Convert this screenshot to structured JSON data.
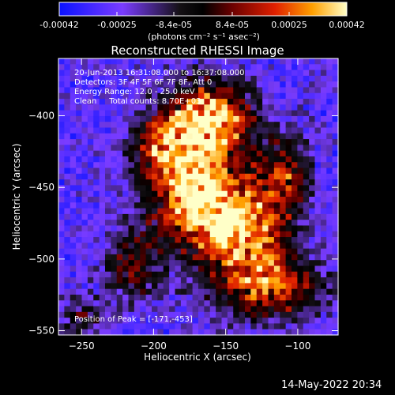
{
  "colorbar": {
    "tick_labels": [
      "-0.00042",
      "-0.00025",
      "-8.4e-05",
      "8.4e-05",
      "0.00025",
      "0.00042"
    ],
    "unit_label": "(photons cm⁻² s⁻¹ asec⁻²)",
    "range": [
      -0.00042,
      0.00042
    ]
  },
  "chart_data": {
    "type": "heatmap",
    "title": "Reconstructed RHESSI Image",
    "xlabel": "Heliocentric X (arcsec)",
    "ylabel": "Heliocentric Y (arcsec)",
    "xlim": [
      -266,
      -72
    ],
    "ylim": [
      -553,
      -360
    ],
    "x_ticks": [
      -250,
      -200,
      -150,
      -100
    ],
    "y_ticks": [
      -400,
      -450,
      -500,
      -550
    ],
    "peak_position": [
      -171,
      -453
    ],
    "annotations": [
      "20-Jun-2013 16:31:08.000 to 16:37:08.000",
      "Detectors: 3F 4F 5F 6F 7F 8F, Att 0",
      "Energy Range: 12.0 - 25.0 keV",
      "Clean     Total counts: 8.70E+03"
    ],
    "peak_label": "Position of Peak = [-171,-453]"
  },
  "footer": {
    "timestamp": "14-May-2022 20:34"
  }
}
